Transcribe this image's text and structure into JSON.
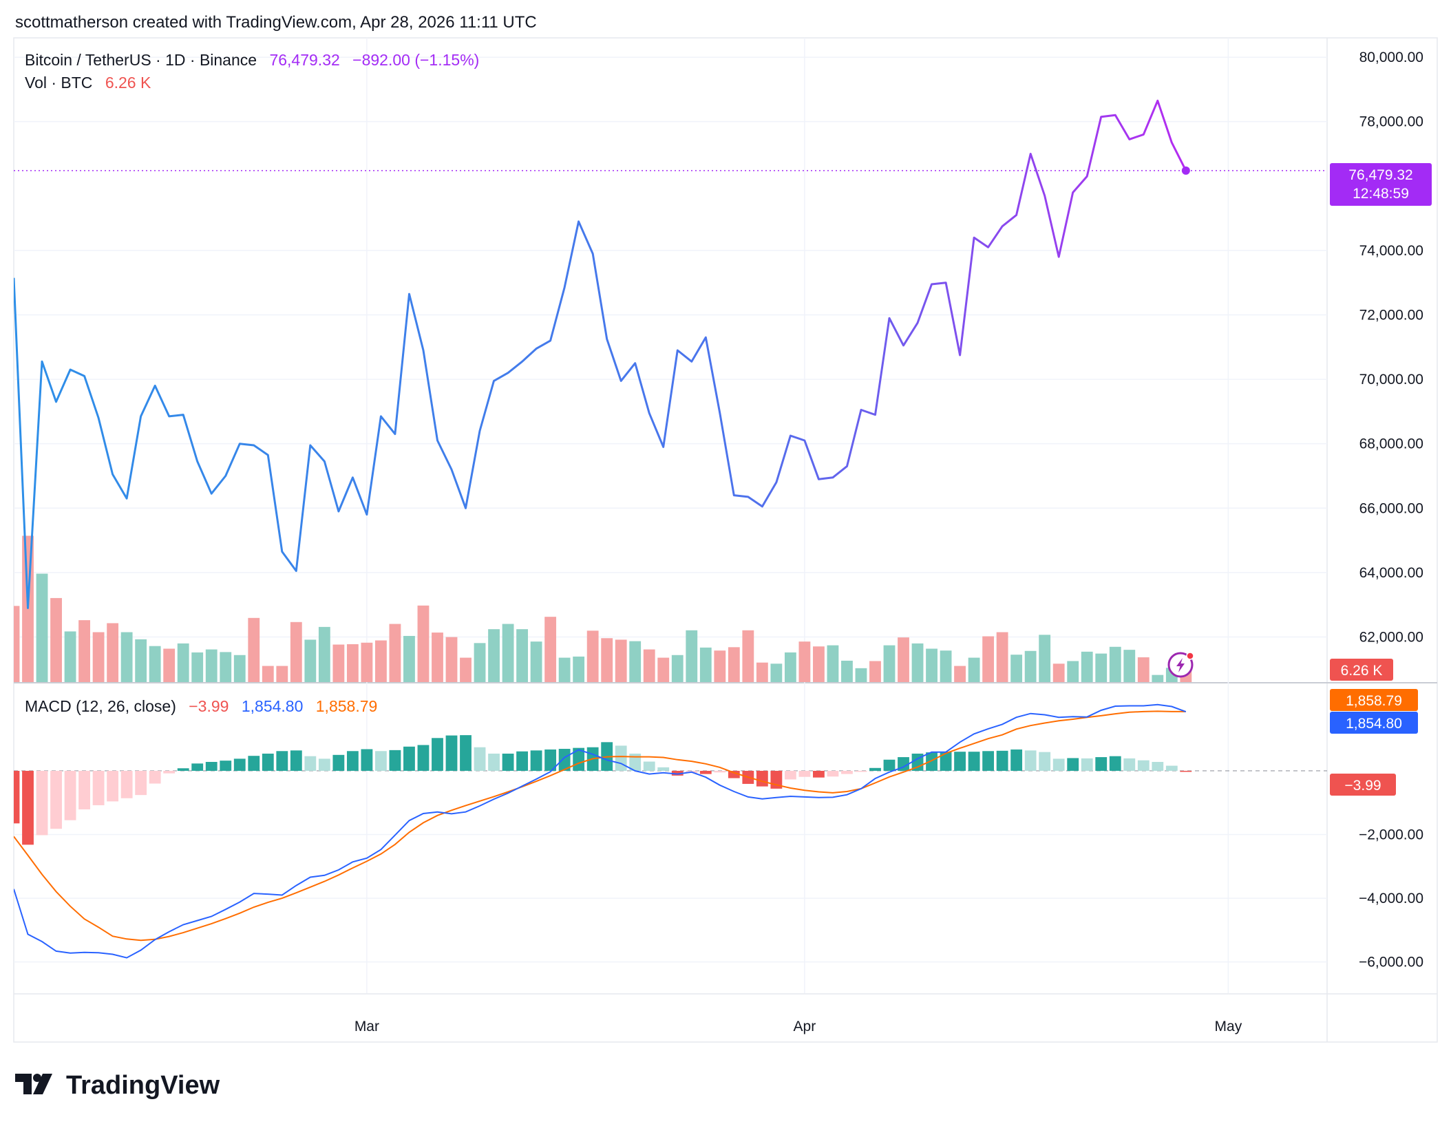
{
  "header": {
    "credit": "scottmatherson created with TradingView.com, Apr 28, 2026 11:11 UTC"
  },
  "legend": {
    "symbol": "Bitcoin / TetherUS · 1D · Binance",
    "price": "76,479.32",
    "change": "−892.00 (−1.15%)",
    "vol_label": "Vol · BTC",
    "vol_value": "6.26 K",
    "macd_label": "MACD (12, 26, close)",
    "macd_hist": "−3.99",
    "macd_line": "1,854.80",
    "macd_signal": "1,858.79"
  },
  "price_tag": {
    "price": "76,479.32",
    "countdown": "12:48:59"
  },
  "vol_tag": "6.26 K",
  "macd_tags": {
    "signal": "1,858.79",
    "macd": "1,854.80",
    "hist": "−3.99"
  },
  "brand": {
    "name": "TradingView"
  },
  "colors": {
    "price_gradient": [
      "#2d8fe8",
      "#b42cf0"
    ],
    "last_price": "#a32bf5",
    "up": "#26a69a",
    "down": "#ef5350",
    "up_light": "#b2dfdb",
    "down_light": "#ffcdd2",
    "macd_line": "#2962ff",
    "signal_line": "#ff6d00",
    "vol_up": "#8fd0c4",
    "vol_down": "#f5a3a3"
  },
  "chart_data": {
    "type": "line",
    "title": "Bitcoin / TetherUS · 1D · Binance",
    "x_ticks": [
      "Mar",
      "Apr",
      "May"
    ],
    "y_ticks": [
      "80,000.00",
      "78,000.00",
      "74,000.00",
      "72,000.00",
      "70,000.00",
      "68,000.00",
      "66,000.00",
      "64,000.00",
      "62,000.00"
    ],
    "ylim": [
      60600,
      80600
    ],
    "xlim": [
      "2026-02-04",
      "2026-05-08"
    ],
    "grid": true,
    "series": [
      {
        "type": "line",
        "x": [
          "2026-02-04",
          "2026-02-05",
          "2026-02-06",
          "2026-02-07",
          "2026-02-08",
          "2026-02-09",
          "2026-02-10",
          "2026-02-11",
          "2026-02-12",
          "2026-02-13",
          "2026-02-14",
          "2026-02-15",
          "2026-02-16",
          "2026-02-17",
          "2026-02-18",
          "2026-02-19",
          "2026-02-20",
          "2026-02-21",
          "2026-02-22",
          "2026-02-23",
          "2026-02-24",
          "2026-02-25",
          "2026-02-26",
          "2026-02-27",
          "2026-02-28",
          "2026-03-01",
          "2026-03-02",
          "2026-03-03",
          "2026-03-04",
          "2026-03-05",
          "2026-03-06",
          "2026-03-07",
          "2026-03-08",
          "2026-03-09",
          "2026-03-10",
          "2026-03-11",
          "2026-03-12",
          "2026-03-13",
          "2026-03-14",
          "2026-03-15",
          "2026-03-16",
          "2026-03-17",
          "2026-03-18",
          "2026-03-19",
          "2026-03-20",
          "2026-03-21",
          "2026-03-22",
          "2026-03-23",
          "2026-03-24",
          "2026-03-25",
          "2026-03-26",
          "2026-03-27",
          "2026-03-28",
          "2026-03-29",
          "2026-03-30",
          "2026-03-31",
          "2026-04-01",
          "2026-04-02",
          "2026-04-03",
          "2026-04-04",
          "2026-04-05",
          "2026-04-06",
          "2026-04-07",
          "2026-04-08",
          "2026-04-09",
          "2026-04-10",
          "2026-04-11",
          "2026-04-12",
          "2026-04-13",
          "2026-04-14",
          "2026-04-15",
          "2026-04-16",
          "2026-04-17",
          "2026-04-18",
          "2026-04-19",
          "2026-04-20",
          "2026-04-21",
          "2026-04-22",
          "2026-04-23",
          "2026-04-24",
          "2026-04-25",
          "2026-04-26",
          "2026-04-27",
          "2026-04-28"
        ],
        "values": [
          73150,
          62900,
          70550,
          69300,
          70300,
          70100,
          68800,
          67050,
          66300,
          68850,
          69800,
          68850,
          68900,
          67450,
          66450,
          67000,
          68000,
          67950,
          67650,
          64650,
          64050,
          67950,
          67450,
          65900,
          66950,
          65800,
          68850,
          68300,
          72650,
          70900,
          68100,
          67200,
          66000,
          68400,
          69950,
          70200,
          70550,
          70950,
          71200,
          72850,
          74900,
          73900,
          71250,
          69950,
          70500,
          68950,
          67900,
          70900,
          70550,
          71300,
          68950,
          66400,
          66350,
          66050,
          66800,
          68250,
          68100,
          66900,
          66950,
          67300,
          69050,
          68900,
          71900,
          71050,
          71750,
          72950,
          73000,
          70750,
          74400,
          74100,
          74750,
          75100,
          77000,
          75700,
          73800,
          75800,
          76300,
          78150,
          78200,
          77450,
          77600,
          78650,
          77350,
          76479.32
        ]
      }
    ],
    "volume": {
      "values": [
        20.3,
        39.0,
        28.9,
        22.4,
        13.5,
        16.5,
        13.3,
        15.7,
        13.3,
        11.4,
        9.6,
        8.9,
        10.3,
        7.9,
        8.7,
        8.0,
        7.2,
        17.1,
        4.3,
        4.3,
        16.0,
        11.3,
        14.7,
        10.0,
        10.1,
        10.5,
        11.1,
        15.5,
        12.3,
        20.4,
        13.2,
        12.0,
        6.5,
        10.4,
        14.1,
        15.5,
        14.1,
        10.8,
        17.4,
        6.5,
        6.8,
        13.7,
        11.7,
        11.3,
        10.9,
        8.7,
        6.5,
        7.2,
        13.8,
        9.2,
        8.4,
        9.3,
        13.8,
        5.2,
        4.9,
        7.9,
        10.8,
        9.5,
        9.8,
        5.7,
        3.7,
        5.6,
        9.8,
        11.9,
        10.3,
        8.9,
        8.4,
        4.3,
        6.5,
        12.2,
        13.3,
        7.3,
        8.3,
        12.6,
        4.9,
        5.6,
        8.1,
        7.6,
        9.4,
        8.6,
        6.6,
        1.9,
        3.8,
        6.26
      ],
      "up": [
        false,
        false,
        true,
        false,
        true,
        false,
        false,
        false,
        true,
        true,
        true,
        false,
        true,
        true,
        true,
        true,
        true,
        false,
        false,
        false,
        false,
        true,
        true,
        false,
        false,
        false,
        false,
        false,
        true,
        false,
        false,
        false,
        false,
        true,
        true,
        true,
        true,
        true,
        false,
        true,
        true,
        false,
        false,
        false,
        true,
        false,
        false,
        true,
        true,
        true,
        false,
        false,
        false,
        false,
        true,
        true,
        false,
        false,
        true,
        true,
        true,
        false,
        true,
        false,
        true,
        true,
        true,
        false,
        true,
        false,
        false,
        true,
        true,
        true,
        false,
        true,
        true,
        true,
        true,
        true,
        false,
        true,
        true,
        false
      ]
    },
    "macd": {
      "label": "MACD (12, 26, close)",
      "y_ticks": [
        "−2,000.00",
        "−4,000.00",
        "−6,000.00"
      ],
      "ylim": [
        -6980,
        2700
      ],
      "histogram": [
        -1650,
        -2320,
        -2020,
        -1820,
        -1550,
        -1210,
        -1080,
        -960,
        -860,
        -760,
        -400,
        -80,
        80,
        230,
        280,
        320,
        380,
        470,
        540,
        620,
        640,
        460,
        380,
        500,
        620,
        680,
        620,
        650,
        760,
        810,
        1030,
        1110,
        1120,
        740,
        540,
        540,
        610,
        640,
        670,
        690,
        720,
        740,
        900,
        790,
        540,
        290,
        110,
        -150,
        -70,
        -100,
        -50,
        -230,
        -410,
        -490,
        -560,
        -270,
        -190,
        -210,
        -180,
        -100,
        -10,
        90,
        350,
        430,
        540,
        580,
        600,
        600,
        600,
        620,
        630,
        670,
        640,
        590,
        380,
        400,
        390,
        430,
        460,
        390,
        330,
        280,
        160,
        -3.99
      ],
      "macd_line": [
        -3710,
        -5130,
        -5360,
        -5660,
        -5720,
        -5700,
        -5710,
        -5760,
        -5870,
        -5630,
        -5300,
        -5050,
        -4830,
        -4700,
        -4570,
        -4350,
        -4120,
        -3850,
        -3870,
        -3900,
        -3600,
        -3340,
        -3280,
        -3110,
        -2860,
        -2740,
        -2470,
        -2020,
        -1560,
        -1340,
        -1290,
        -1350,
        -1290,
        -1100,
        -890,
        -700,
        -480,
        -260,
        -30,
        420,
        660,
        520,
        340,
        230,
        0,
        -100,
        -60,
        -100,
        -40,
        -200,
        -450,
        -650,
        -820,
        -880,
        -840,
        -800,
        -820,
        -840,
        -830,
        -750,
        -560,
        -240,
        -40,
        120,
        380,
        590,
        590,
        900,
        1160,
        1320,
        1460,
        1680,
        1800,
        1760,
        1680,
        1700,
        1690,
        1900,
        2030,
        2040,
        2040,
        2080,
        2020,
        1854.8
      ],
      "signal_line": [
        -2060,
        -2650,
        -3250,
        -3790,
        -4250,
        -4650,
        -4910,
        -5190,
        -5280,
        -5320,
        -5290,
        -5200,
        -5080,
        -4940,
        -4800,
        -4640,
        -4470,
        -4280,
        -4130,
        -4000,
        -3830,
        -3650,
        -3470,
        -3270,
        -3050,
        -2840,
        -2610,
        -2310,
        -1930,
        -1630,
        -1400,
        -1240,
        -1090,
        -950,
        -810,
        -660,
        -500,
        -330,
        -150,
        40,
        240,
        380,
        440,
        450,
        440,
        440,
        420,
        350,
        300,
        220,
        110,
        -60,
        -200,
        -330,
        -440,
        -540,
        -610,
        -660,
        -690,
        -650,
        -560,
        -380,
        -190,
        -40,
        120,
        320,
        550,
        710,
        860,
        1010,
        1130,
        1310,
        1420,
        1500,
        1570,
        1620,
        1680,
        1730,
        1790,
        1840,
        1860,
        1870,
        1860,
        1858.79
      ]
    }
  }
}
